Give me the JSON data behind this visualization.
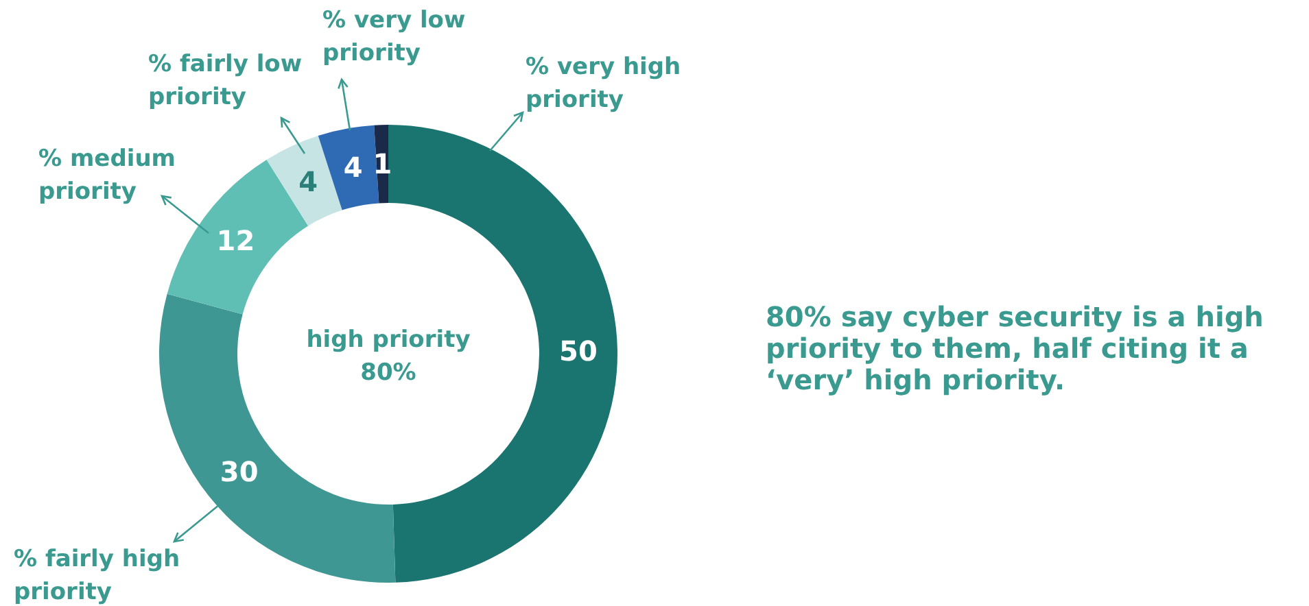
{
  "chart_data": {
    "type": "donut",
    "categories": [
      "% very high priority",
      "% fairly high priority",
      "% medium priority",
      "% fairly low priority",
      "% very low priority",
      null
    ],
    "values": [
      50,
      30,
      12,
      4,
      4,
      1
    ],
    "colors": [
      "#1a7470",
      "#3f9794",
      "#5fbfb5",
      "#c5e4e3",
      "#2f6bb5",
      "#1c2a4a"
    ],
    "data_labels": true,
    "annotations": [
      "high priority 80%",
      "80% say cyber security is a high priority to them, half citing it a ‘very’ high priority."
    ]
  }
}
